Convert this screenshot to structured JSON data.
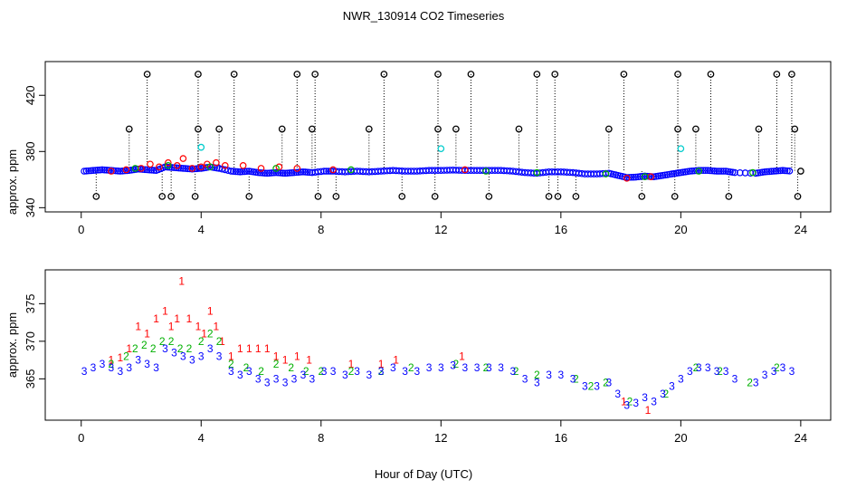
{
  "title": "NWR_130914  CO2 Timeseries",
  "xlabel": "Hour of Day (UTC)",
  "colors": {
    "series1": "#ff0000",
    "series2": "#00b000",
    "series3": "#0000ff",
    "raw": "#000000",
    "flag": "#00cccc",
    "background": "#ffffff"
  },
  "chart_data": [
    {
      "id": "top",
      "type": "scatter",
      "ylabel": "approx. ppm",
      "xlim": [
        -1.2,
        25
      ],
      "ylim": [
        337,
        444
      ],
      "xticks": [
        "0",
        "4",
        "8",
        "12",
        "16",
        "20",
        "24"
      ],
      "yticks": [
        "340",
        "380",
        "420"
      ],
      "markers": [
        "o",
        "o",
        "o"
      ],
      "series": [
        {
          "name": "1",
          "color": "#ff0000",
          "points": [
            [
              1.0,
              366
            ],
            [
              1.5,
              367
            ],
            [
              2.0,
              368
            ],
            [
              2.3,
              371
            ],
            [
              2.6,
              369
            ],
            [
              2.9,
              372
            ],
            [
              3.2,
              370
            ],
            [
              3.4,
              375
            ],
            [
              3.7,
              368
            ],
            [
              4.0,
              369
            ],
            [
              4.2,
              371
            ],
            [
              4.5,
              372
            ],
            [
              4.8,
              370
            ],
            [
              5.4,
              370
            ],
            [
              6.0,
              368
            ],
            [
              6.6,
              369
            ],
            [
              7.2,
              368
            ],
            [
              8.4,
              367
            ],
            [
              12.8,
              367
            ],
            [
              18.2,
              361
            ],
            [
              19.0,
              362
            ]
          ]
        },
        {
          "name": "2",
          "color": "#00b000",
          "points": [
            [
              1.8,
              368
            ],
            [
              2.9,
              370
            ],
            [
              4.3,
              369
            ],
            [
              6.5,
              368
            ],
            [
              9.0,
              367
            ],
            [
              13.5,
              366
            ],
            [
              15.2,
              365
            ],
            [
              17.5,
              364
            ],
            [
              18.8,
              362
            ],
            [
              20.6,
              366
            ],
            [
              22.4,
              365
            ]
          ]
        },
        {
          "name": "3",
          "color": "#0000ff",
          "points": []
        }
      ],
      "raw_points": [
        [
          0.5,
          348
        ],
        [
          1.6,
          396
        ],
        [
          2.2,
          435
        ],
        [
          2.7,
          348
        ],
        [
          3.0,
          348
        ],
        [
          3.8,
          348
        ],
        [
          3.9,
          396
        ],
        [
          3.9,
          435
        ],
        [
          4.6,
          396
        ],
        [
          5.1,
          435
        ],
        [
          5.6,
          348
        ],
        [
          6.7,
          396
        ],
        [
          7.2,
          435
        ],
        [
          7.7,
          396
        ],
        [
          7.8,
          435
        ],
        [
          7.9,
          348
        ],
        [
          8.5,
          348
        ],
        [
          9.6,
          396
        ],
        [
          10.1,
          435
        ],
        [
          10.7,
          348
        ],
        [
          11.8,
          348
        ],
        [
          11.9,
          396
        ],
        [
          11.9,
          435
        ],
        [
          12.5,
          396
        ],
        [
          13.0,
          435
        ],
        [
          13.6,
          348
        ],
        [
          14.6,
          396
        ],
        [
          15.2,
          435
        ],
        [
          15.6,
          348
        ],
        [
          15.8,
          435
        ],
        [
          15.9,
          348
        ],
        [
          16.5,
          348
        ],
        [
          17.6,
          396
        ],
        [
          18.1,
          435
        ],
        [
          18.7,
          348
        ],
        [
          19.8,
          348
        ],
        [
          19.9,
          396
        ],
        [
          19.9,
          435
        ],
        [
          20.5,
          396
        ],
        [
          21.0,
          435
        ],
        [
          21.6,
          348
        ],
        [
          22.6,
          396
        ],
        [
          23.2,
          435
        ],
        [
          23.7,
          435
        ],
        [
          23.8,
          396
        ],
        [
          23.9,
          348
        ],
        [
          24.0,
          366
        ]
      ],
      "flagged_points": [
        [
          4.0,
          383
        ],
        [
          12.0,
          382
        ],
        [
          20.0,
          382
        ]
      ]
    },
    {
      "id": "bottom",
      "type": "scatter",
      "ylabel": "approx. ppm",
      "xlim": [
        -1.2,
        25
      ],
      "ylim": [
        359.5,
        379.5
      ],
      "xticks": [
        "0",
        "4",
        "8",
        "12",
        "16",
        "20",
        "24"
      ],
      "yticks": [
        "365",
        "370",
        "375"
      ],
      "markers": [
        "1",
        "2",
        "3"
      ],
      "series": [
        {
          "name": "1",
          "color": "#ff0000",
          "points": [
            [
              1.0,
              367.5
            ],
            [
              1.3,
              367.8
            ],
            [
              1.6,
              369
            ],
            [
              1.9,
              372
            ],
            [
              2.2,
              371
            ],
            [
              2.5,
              373
            ],
            [
              2.8,
              374
            ],
            [
              3.0,
              372
            ],
            [
              3.2,
              373
            ],
            [
              3.35,
              378
            ],
            [
              3.6,
              373
            ],
            [
              3.9,
              372
            ],
            [
              4.1,
              371
            ],
            [
              4.3,
              374
            ],
            [
              4.5,
              372
            ],
            [
              4.7,
              370
            ],
            [
              5.0,
              368
            ],
            [
              5.3,
              369
            ],
            [
              5.6,
              369
            ],
            [
              5.9,
              369
            ],
            [
              6.2,
              369
            ],
            [
              6.5,
              368
            ],
            [
              6.8,
              367.5
            ],
            [
              7.2,
              368
            ],
            [
              7.6,
              367.5
            ],
            [
              9.0,
              367
            ],
            [
              10.0,
              367
            ],
            [
              10.5,
              367.5
            ],
            [
              12.7,
              368
            ],
            [
              18.1,
              362
            ],
            [
              18.9,
              360.8
            ]
          ]
        },
        {
          "name": "2",
          "color": "#00b000",
          "points": [
            [
              1.0,
              367
            ],
            [
              1.5,
              368
            ],
            [
              1.8,
              369
            ],
            [
              2.1,
              369.5
            ],
            [
              2.4,
              369
            ],
            [
              2.7,
              370
            ],
            [
              3.0,
              370
            ],
            [
              3.3,
              369
            ],
            [
              3.6,
              369
            ],
            [
              4.0,
              370
            ],
            [
              4.3,
              371
            ],
            [
              4.6,
              370
            ],
            [
              5.0,
              367
            ],
            [
              5.5,
              366.5
            ],
            [
              6.0,
              366
            ],
            [
              6.5,
              367
            ],
            [
              7.0,
              366.5
            ],
            [
              7.5,
              366
            ],
            [
              8.0,
              366
            ],
            [
              9.0,
              366
            ],
            [
              10.0,
              366
            ],
            [
              11.0,
              366.5
            ],
            [
              12.5,
              367
            ],
            [
              13.5,
              366.5
            ],
            [
              14.5,
              366
            ],
            [
              15.2,
              365.5
            ],
            [
              16.5,
              365
            ],
            [
              17.0,
              364
            ],
            [
              17.5,
              364.5
            ],
            [
              18.3,
              362
            ],
            [
              19.5,
              363
            ],
            [
              20.5,
              366.5
            ],
            [
              21.3,
              366
            ],
            [
              22.3,
              364.5
            ],
            [
              23.2,
              366.5
            ]
          ]
        },
        {
          "name": "3",
          "color": "#0000ff",
          "points": [
            [
              0.1,
              366
            ],
            [
              0.4,
              366.5
            ],
            [
              0.7,
              367
            ],
            [
              1.0,
              366.5
            ],
            [
              1.3,
              366
            ],
            [
              1.6,
              366.5
            ],
            [
              1.9,
              367.5
            ],
            [
              2.2,
              367
            ],
            [
              2.5,
              366.5
            ],
            [
              2.8,
              369
            ],
            [
              3.1,
              368.5
            ],
            [
              3.4,
              368
            ],
            [
              3.7,
              367.5
            ],
            [
              4.0,
              368
            ],
            [
              4.3,
              369
            ],
            [
              4.6,
              368
            ],
            [
              5.0,
              366
            ],
            [
              5.3,
              365.5
            ],
            [
              5.6,
              366
            ],
            [
              5.9,
              365
            ],
            [
              6.2,
              364.5
            ],
            [
              6.5,
              365
            ],
            [
              6.8,
              364.5
            ],
            [
              7.1,
              365
            ],
            [
              7.4,
              365.5
            ],
            [
              7.7,
              365
            ],
            [
              8.1,
              366
            ],
            [
              8.4,
              366
            ],
            [
              8.8,
              365.5
            ],
            [
              9.2,
              366
            ],
            [
              9.6,
              365.5
            ],
            [
              10.0,
              366
            ],
            [
              10.4,
              366.5
            ],
            [
              10.8,
              366
            ],
            [
              11.2,
              366
            ],
            [
              11.6,
              366.5
            ],
            [
              12.0,
              366.5
            ],
            [
              12.4,
              366.8
            ],
            [
              12.8,
              366.5
            ],
            [
              13.2,
              366.5
            ],
            [
              13.6,
              366.5
            ],
            [
              14.0,
              366.5
            ],
            [
              14.4,
              366
            ],
            [
              14.8,
              365
            ],
            [
              15.2,
              364.5
            ],
            [
              15.6,
              365.5
            ],
            [
              16.0,
              365.5
            ],
            [
              16.4,
              365
            ],
            [
              16.8,
              364
            ],
            [
              17.2,
              364
            ],
            [
              17.6,
              364.5
            ],
            [
              17.9,
              363
            ],
            [
              18.2,
              361.5
            ],
            [
              18.5,
              361.8
            ],
            [
              18.8,
              362.5
            ],
            [
              19.1,
              362
            ],
            [
              19.4,
              363
            ],
            [
              19.7,
              364
            ],
            [
              20.0,
              365
            ],
            [
              20.3,
              366
            ],
            [
              20.6,
              366.5
            ],
            [
              20.9,
              366.5
            ],
            [
              21.2,
              366
            ],
            [
              21.5,
              366
            ],
            [
              21.8,
              365
            ],
            [
              22.5,
              364.5
            ],
            [
              22.8,
              365.5
            ],
            [
              23.1,
              366
            ],
            [
              23.4,
              366.5
            ],
            [
              23.7,
              366
            ]
          ]
        }
      ]
    }
  ]
}
